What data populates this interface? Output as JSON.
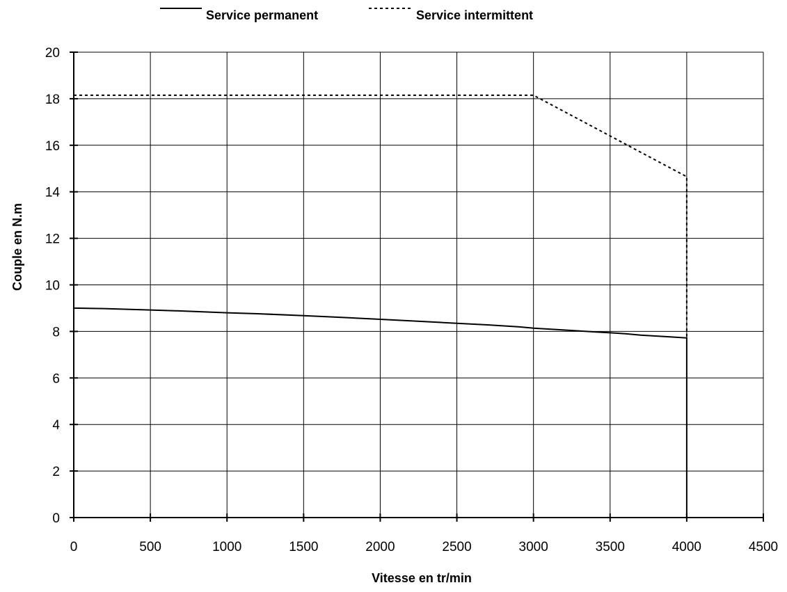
{
  "chart_data": {
    "type": "line",
    "title": "",
    "xlabel": "Vitesse en tr/min",
    "ylabel": "Couple en N.m",
    "xlim": [
      0,
      4500
    ],
    "ylim": [
      0,
      20
    ],
    "xticks": [
      0,
      500,
      1000,
      1500,
      2000,
      2500,
      3000,
      3500,
      4000,
      4500
    ],
    "yticks": [
      0,
      2,
      4,
      6,
      8,
      10,
      12,
      14,
      16,
      18,
      20
    ],
    "xtick_labels": [
      "0",
      "500",
      "1000",
      "1500",
      "2000",
      "2500",
      "3000",
      "3500",
      "4000",
      "4500"
    ],
    "ytick_labels": [
      "0",
      "2",
      "4",
      "6",
      "8",
      "10",
      "12",
      "14",
      "16",
      "18",
      "20"
    ],
    "grid": true,
    "legend_position": "top",
    "series": [
      {
        "name": "Service permanent",
        "style": "solid",
        "color": "#000000",
        "x": [
          0,
          200,
          500,
          700,
          1000,
          1200,
          1500,
          1700,
          2000,
          2300,
          2500,
          2700,
          2900,
          3000,
          3200,
          3400,
          3600,
          3700,
          3900,
          4000,
          4000
        ],
        "y": [
          9.0,
          8.98,
          8.92,
          8.88,
          8.8,
          8.76,
          8.68,
          8.62,
          8.52,
          8.42,
          8.35,
          8.28,
          8.2,
          8.14,
          8.06,
          7.98,
          7.9,
          7.84,
          7.76,
          7.72,
          0
        ]
      },
      {
        "name": "Service intermittent",
        "style": "dashed",
        "color": "#000000",
        "x": [
          0,
          3000,
          4000,
          4000
        ],
        "y": [
          18.15,
          18.15,
          14.65,
          7.72
        ]
      }
    ]
  }
}
